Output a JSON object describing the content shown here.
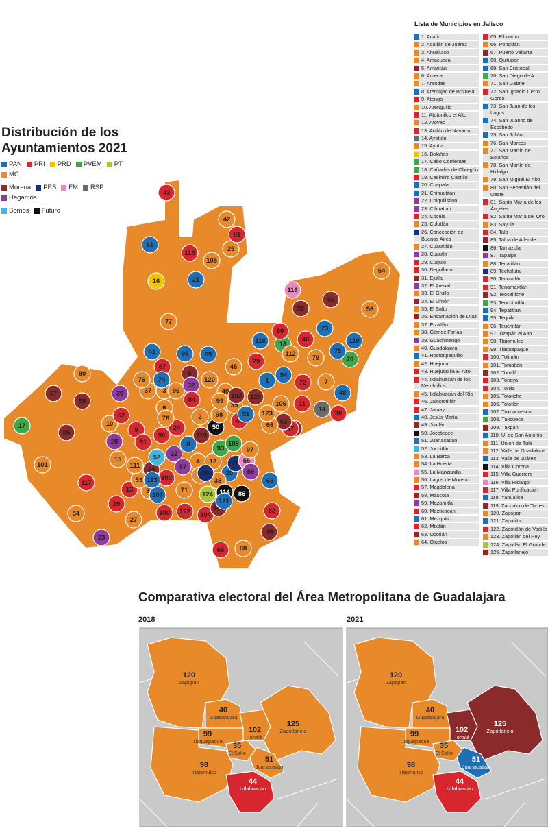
{
  "map": {
    "title": "Distribución de los Ayuntamientos 2021",
    "list_title": "Lista de Municipios en Jalisco",
    "parties": [
      {
        "name": "PAN",
        "color": "#1f6fb5"
      },
      {
        "name": "PRI",
        "color": "#d7262d"
      },
      {
        "name": "PRD",
        "color": "#f2c500"
      },
      {
        "name": "PVEM",
        "color": "#3fa64a"
      },
      {
        "name": "PT",
        "color": "#a8c53a"
      },
      {
        "name": "MC",
        "color": "#e8892a"
      },
      {
        "name": "Morena",
        "color": "#8b2a2a"
      },
      {
        "name": "PES",
        "color": "#1a2f7a"
      },
      {
        "name": "FM",
        "color": "#e88ac0"
      },
      {
        "name": "RSP",
        "color": "#6b6b6b"
      },
      {
        "name": "Hagamos",
        "color": "#8e3b9e"
      },
      {
        "name": "Somos",
        "color": "#3fb6e0"
      },
      {
        "name": "Futuro",
        "color": "#111111"
      }
    ],
    "municipios": [
      {
        "num": "1",
        "label": "1. Acatic",
        "party": "PAN"
      },
      {
        "num": "2",
        "label": "2. Acatlán de Juárez",
        "party": "MC"
      },
      {
        "num": "3",
        "label": "3. Ahualulco",
        "party": "MC"
      },
      {
        "num": "4",
        "label": "4. Amacueca",
        "party": "MC"
      },
      {
        "num": "5",
        "label": "5. Amatitán",
        "party": "Morena"
      },
      {
        "num": "6",
        "label": "6. Ameca",
        "party": "MC"
      },
      {
        "num": "7",
        "label": "7. Arandas",
        "party": "MC"
      },
      {
        "num": "8",
        "label": "8. Atemajac de Brizuela",
        "party": "PAN"
      },
      {
        "num": "9",
        "label": "9. Atengo",
        "party": "PRI"
      },
      {
        "num": "10",
        "label": "10. Atenguillo",
        "party": "MC"
      },
      {
        "num": "11",
        "label": "11. Atotonilco el Alto",
        "party": "PRI"
      },
      {
        "num": "12",
        "label": "12. Atoyac",
        "party": "MC"
      },
      {
        "num": "13",
        "label": "13. Autlán de Navarro",
        "party": "PRI"
      },
      {
        "num": "14",
        "label": "14. Ayotlán",
        "party": "RSP"
      },
      {
        "num": "15",
        "label": "15. Ayutla",
        "party": "MC"
      },
      {
        "num": "16",
        "label": "16. Bolaños",
        "party": "PRD"
      },
      {
        "num": "17",
        "label": "17. Cabo Corrientes",
        "party": "PVEM"
      },
      {
        "num": "18",
        "label": "18. Cañadas de Obregón",
        "party": "PVEM"
      },
      {
        "num": "19",
        "label": "19. Casimiro Castillo",
        "party": "PRI"
      },
      {
        "num": "20",
        "label": "20. Chapala",
        "party": "PAN"
      },
      {
        "num": "21",
        "label": "21. Chimaltitán",
        "party": "PAN"
      },
      {
        "num": "22",
        "label": "22. Chiquilistlán",
        "party": "Hagamos"
      },
      {
        "num": "23",
        "label": "23. Cihuatlán",
        "party": "Hagamos"
      },
      {
        "num": "24",
        "label": "24. Cocula",
        "party": "PRI"
      },
      {
        "num": "25",
        "label": "25. Colotlán",
        "party": "MC"
      },
      {
        "num": "26",
        "label": "26. Concepción de Buenos Aires",
        "party": "PES"
      },
      {
        "num": "27",
        "label": "27. Cuautitlán",
        "party": "MC"
      },
      {
        "num": "28",
        "label": "28. Cuautla",
        "party": "Hagamos"
      },
      {
        "num": "29",
        "label": "29. Cuquío",
        "party": "PRI"
      },
      {
        "num": "30",
        "label": "30. Degollado",
        "party": "PRI"
      },
      {
        "num": "31",
        "label": "31. Ejutla",
        "party": "Morena"
      },
      {
        "num": "32",
        "label": "32. El Arenal",
        "party": "Hagamos"
      },
      {
        "num": "33",
        "label": "33. El Grullo",
        "party": "MC"
      },
      {
        "num": "34",
        "label": "34. El Limón",
        "party": "Morena"
      },
      {
        "num": "35",
        "label": "35. El Salto",
        "party": "MC"
      },
      {
        "num": "36",
        "label": "36. Encarnación de Díaz",
        "party": "Morena"
      },
      {
        "num": "37",
        "label": "37. Etzatlán",
        "party": "MC"
      },
      {
        "num": "38",
        "label": "38. Gómez Farías",
        "party": "MC"
      },
      {
        "num": "39",
        "label": "39. Guachinango",
        "party": "Hagamos"
      },
      {
        "num": "40",
        "label": "40. Guadalajara",
        "party": "MC"
      },
      {
        "num": "41",
        "label": "41. Hostotipaquillo",
        "party": "PAN"
      },
      {
        "num": "42",
        "label": "42. Huejucar",
        "party": "MC"
      },
      {
        "num": "43",
        "label": "43. Huejuquilla El Alto",
        "party": "PRI"
      },
      {
        "num": "44",
        "label": "44. Ixtlahuacán de los Membrillos",
        "party": "PRI"
      },
      {
        "num": "45",
        "label": "45. Ixtlahuacán del Río",
        "party": "MC"
      },
      {
        "num": "46",
        "label": "46. Jalostotitlán",
        "party": "PRI"
      },
      {
        "num": "47",
        "label": "47. Jamay",
        "party": "PRI"
      },
      {
        "num": "48",
        "label": "48. Jesús María",
        "party": "PAN"
      },
      {
        "num": "49",
        "label": "49. Jilotlán",
        "party": "Morena"
      },
      {
        "num": "50",
        "label": "50. Jocotepec",
        "party": "Futuro"
      },
      {
        "num": "51",
        "label": "51. Juanacatlán",
        "party": "PAN"
      },
      {
        "num": "52",
        "label": "52. Juchitlán",
        "party": "Somos"
      },
      {
        "num": "53",
        "label": "53. La Barca",
        "party": "MC"
      },
      {
        "num": "54",
        "label": "54. La Huerta",
        "party": "MC"
      },
      {
        "num": "55",
        "label": "55. La Manzanilla",
        "party": "FM"
      },
      {
        "num": "56",
        "label": "56. Lagos de Moreno",
        "party": "MC"
      },
      {
        "num": "57",
        "label": "57. Magdalena",
        "party": "PRI"
      },
      {
        "num": "58",
        "label": "58. Mascota",
        "party": "Morena"
      },
      {
        "num": "59",
        "label": "59. Mazamitla",
        "party": "Hagamos"
      },
      {
        "num": "60",
        "label": "60. Mexticacán",
        "party": "PRI"
      },
      {
        "num": "61",
        "label": "61. Mezquitic",
        "party": "PAN"
      },
      {
        "num": "62",
        "label": "62. Mixtlán",
        "party": "PRI"
      },
      {
        "num": "63",
        "label": "63. Ocotlán",
        "party": "Morena"
      },
      {
        "num": "64",
        "label": "64. Ojuelos",
        "party": "MC"
      },
      {
        "num": "65",
        "label": "65. Pihuamo",
        "party": "PRI"
      },
      {
        "num": "66",
        "label": "66. Poncitlán",
        "party": "MC"
      },
      {
        "num": "67",
        "label": "67. Puerto Vallarta",
        "party": "Morena"
      },
      {
        "num": "68",
        "label": "68. Quitupan",
        "party": "PAN"
      },
      {
        "num": "69",
        "label": "69. San Cristóbal",
        "party": "PAN"
      },
      {
        "num": "70",
        "label": "70. San Diego de A.",
        "party": "PVEM"
      },
      {
        "num": "71",
        "label": "71. San Gabriel",
        "party": "MC"
      },
      {
        "num": "72",
        "label": "72. San Ignacio Cerro Gordo",
        "party": "PRI"
      },
      {
        "num": "73",
        "label": "73. San Juan de los Lagos",
        "party": "PAN"
      },
      {
        "num": "74",
        "label": "74. San Juanito de Escobedo",
        "party": "PAN"
      },
      {
        "num": "75",
        "label": "75. San Julián",
        "party": "PAN"
      },
      {
        "num": "76",
        "label": "76. San Marcos",
        "party": "MC"
      },
      {
        "num": "77",
        "label": "77. San Martín de Bolaños",
        "party": "MC"
      },
      {
        "num": "78",
        "label": "78. San Martín de Hidalgo",
        "party": "MC"
      },
      {
        "num": "79",
        "label": "79. San Miguel El Alto",
        "party": "MC"
      },
      {
        "num": "80",
        "label": "80. San Sebastián del Oeste",
        "party": "MC"
      },
      {
        "num": "81",
        "label": "81. Santa María de los Ángeles",
        "party": "PRI"
      },
      {
        "num": "82",
        "label": "82. Santa María del Oro",
        "party": "PRI"
      },
      {
        "num": "83",
        "label": "83. Sayula",
        "party": "MC"
      },
      {
        "num": "84",
        "label": "84. Tala",
        "party": "PRI"
      },
      {
        "num": "85",
        "label": "85. Talpa de Allende",
        "party": "Morena"
      },
      {
        "num": "86",
        "label": "86. Tamazula",
        "party": "Futuro"
      },
      {
        "num": "87",
        "label": "87. Tapalpa",
        "party": "Hagamos"
      },
      {
        "num": "88",
        "label": "88. Tecalitlán",
        "party": "MC"
      },
      {
        "num": "89",
        "label": "89. Techaluta",
        "party": "PES"
      },
      {
        "num": "90",
        "label": "90. Tecolotlán",
        "party": "PRI"
      },
      {
        "num": "91",
        "label": "91. Tenamaxtlán",
        "party": "PRI"
      },
      {
        "num": "92",
        "label": "92. Teocaltiche",
        "party": "Morena"
      },
      {
        "num": "93",
        "label": "93. Teocuitatlán",
        "party": "PVEM"
      },
      {
        "num": "94",
        "label": "94. Tepatitlán",
        "party": "PAN"
      },
      {
        "num": "95",
        "label": "95. Tequila",
        "party": "PAN"
      },
      {
        "num": "96",
        "label": "96. Teuchitlán",
        "party": "MC"
      },
      {
        "num": "97",
        "label": "97. Tizapán el Alto",
        "party": "MC"
      },
      {
        "num": "98",
        "label": "98. Tlajomulco",
        "party": "MC"
      },
      {
        "num": "99",
        "label": "99. Tlaquepaque",
        "party": "MC"
      },
      {
        "num": "100",
        "label": "100. Tolimán",
        "party": "PRI"
      },
      {
        "num": "101",
        "label": "101. Tomatlán",
        "party": "MC"
      },
      {
        "num": "102",
        "label": "102. Tonalá",
        "party": "Morena"
      },
      {
        "num": "103",
        "label": "103. Tonaya",
        "party": "PRI"
      },
      {
        "num": "104",
        "label": "104. Tonila",
        "party": "PRI"
      },
      {
        "num": "105",
        "label": "105. Totatiche",
        "party": "MC"
      },
      {
        "num": "106",
        "label": "106. Tototlán",
        "party": "MC"
      },
      {
        "num": "107",
        "label": "107. Tuxcacuesco",
        "party": "PAN"
      },
      {
        "num": "108",
        "label": "108. Tuxcueca",
        "party": "PVEM"
      },
      {
        "num": "109",
        "label": "109. Tuxpan",
        "party": "Morena"
      },
      {
        "num": "110",
        "label": "110. U. de San Antonio",
        "party": "PAN"
      },
      {
        "num": "111",
        "label": "111. Unión de Tula",
        "party": "MC"
      },
      {
        "num": "112",
        "label": "112. Valle de Guadalupe",
        "party": "MC"
      },
      {
        "num": "113",
        "label": "113. Valle de Juárez",
        "party": "PAN"
      },
      {
        "num": "114",
        "label": "114. Villa Corona",
        "party": "Futuro"
      },
      {
        "num": "115",
        "label": "115. Villa Guerrero",
        "party": "PRI"
      },
      {
        "num": "116",
        "label": "116. Villa Hidalgo",
        "party": "FM"
      },
      {
        "num": "117",
        "label": "117. Villa Purificación",
        "party": "PRI"
      },
      {
        "num": "118",
        "label": "118. Yahualica",
        "party": "PAN"
      },
      {
        "num": "119",
        "label": "119. Zacoalco de Torres",
        "party": "Morena"
      },
      {
        "num": "120",
        "label": "120. Zapopan",
        "party": "MC"
      },
      {
        "num": "121",
        "label": "121. Zapotiltic",
        "party": "PAN"
      },
      {
        "num": "122",
        "label": "122. Zapotitlán de Vadillo",
        "party": "PRI"
      },
      {
        "num": "123",
        "label": "123. Zapotlán del Rey",
        "party": "MC"
      },
      {
        "num": "124",
        "label": "124. Zapotlán El Grande",
        "party": "PT"
      },
      {
        "num": "125",
        "label": "125. Zapotlanejo",
        "party": "Morena"
      }
    ]
  },
  "metro": {
    "title": "Comparativa electoral del Área Metropolitana de Guadalajara",
    "panels": [
      {
        "year": "2018",
        "areas": [
          {
            "num": "120",
            "name": "Zapopan",
            "party": "MC"
          },
          {
            "num": "40",
            "name": "Guadalajara",
            "party": "MC"
          },
          {
            "num": "102",
            "name": "Tonalá",
            "party": "MC"
          },
          {
            "num": "125",
            "name": "Zapotlanejo",
            "party": "MC"
          },
          {
            "num": "99",
            "name": "Tlaquepaque",
            "party": "MC"
          },
          {
            "num": "35",
            "name": "El Salto",
            "party": "MC"
          },
          {
            "num": "51",
            "name": "Juanacatlán",
            "party": "MC"
          },
          {
            "num": "98",
            "name": "Tlajomulco",
            "party": "MC"
          },
          {
            "num": "44",
            "name": "Ixtlahuacán",
            "party": "PRI"
          }
        ]
      },
      {
        "year": "2021",
        "areas": [
          {
            "num": "120",
            "name": "Zapopan",
            "party": "MC"
          },
          {
            "num": "40",
            "name": "Guadalajara",
            "party": "MC"
          },
          {
            "num": "102",
            "name": "Tonalá",
            "party": "Morena"
          },
          {
            "num": "125",
            "name": "Zapotlanejo",
            "party": "Morena"
          },
          {
            "num": "99",
            "name": "Tlaquepaque",
            "party": "MC"
          },
          {
            "num": "35",
            "name": "El Salto",
            "party": "MC"
          },
          {
            "num": "51",
            "name": "Juanacatlán",
            "party": "PAN"
          },
          {
            "num": "98",
            "name": "Tlajomulco",
            "party": "MC"
          },
          {
            "num": "44",
            "name": "Ixtlahuacán",
            "party": "PRI"
          }
        ]
      }
    ]
  }
}
